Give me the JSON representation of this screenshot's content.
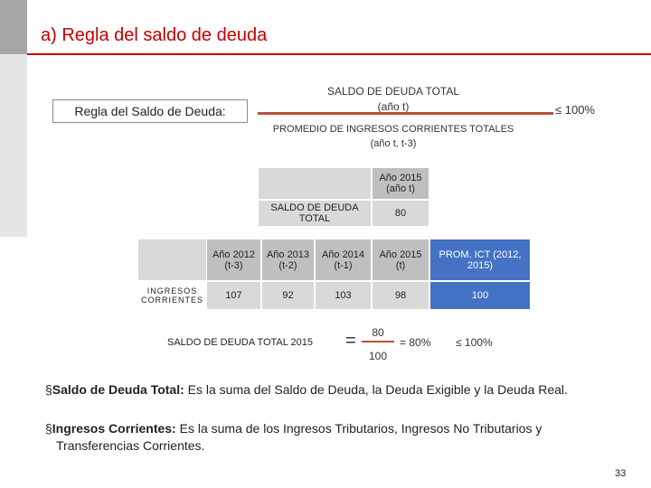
{
  "header": {
    "title": "a) Regla del saldo de deuda"
  },
  "rule": {
    "label": "Regla del Saldo de Deuda:",
    "numerator": "SALDO DE DEUDA TOTAL",
    "numerator_sub": "(año t)",
    "denominator": "PROMEDIO DE INGRESOS CORRIENTES TOTALES",
    "denominator_sub": "(año t, t-3)",
    "limit": "≤ 100%"
  },
  "table1": {
    "header": "Año 2015 (año t)",
    "row_label": "SALDO DE DEUDA TOTAL",
    "value": "80"
  },
  "table2": {
    "headers": [
      "Año 2012 (t-3)",
      "Año 2013 (t-2)",
      "Año 2014 (t-1)",
      "Año 2015 (t)",
      "PROM. ICT (2012, 2015)"
    ],
    "row_label": "INGRESOS CORRIENTES",
    "values": [
      "107",
      "92",
      "103",
      "98",
      "100"
    ]
  },
  "formula": {
    "label": "SALDO DE DEUDA TOTAL 2015",
    "equals": "=",
    "numerator": "80",
    "denominator": "100",
    "result": "= 80%",
    "limit": "≤ 100%"
  },
  "bullets": [
    {
      "term": "Saldo de Deuda Total:",
      "text": " Es la suma del Saldo de Deuda, la Deuda Exigible y la Deuda Real."
    },
    {
      "term": "Ingresos Corrientes:",
      "text": " Es la suma de los Ingresos Tributarios, Ingresos No Tributarios y Transferencias Corrientes."
    }
  ],
  "footer": {
    "page": "33"
  }
}
